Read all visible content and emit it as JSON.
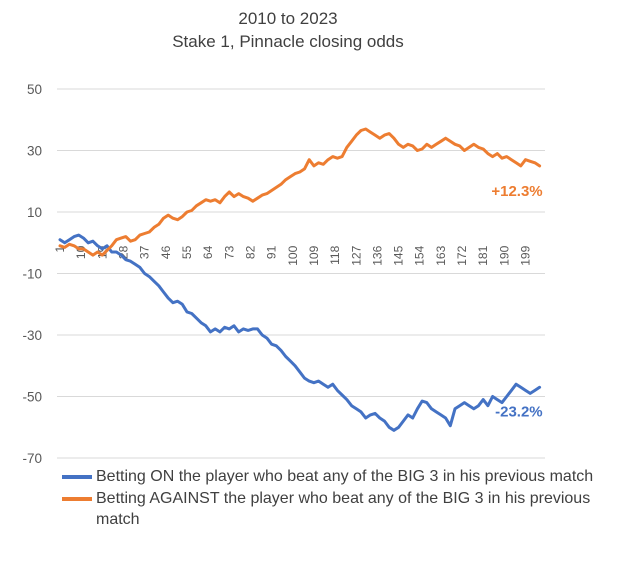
{
  "chart_data": {
    "type": "line",
    "title": "2010 to 2023",
    "subtitle": "Stake 1, Pinnacle closing odds",
    "ylim": [
      -70,
      50
    ],
    "yticks": [
      50,
      30,
      10,
      -10,
      -30,
      -50,
      -70
    ],
    "x_tick_labels": [
      "1",
      "10",
      "19",
      "28",
      "37",
      "46",
      "55",
      "64",
      "73",
      "82",
      "91",
      "100",
      "109",
      "118",
      "127",
      "136",
      "145",
      "154",
      "163",
      "172",
      "181",
      "190",
      "199"
    ],
    "x_range": [
      1,
      206
    ],
    "grid": "horizontal",
    "legend_position": "bottom",
    "series": [
      {
        "name": "Betting ON the player who beat any of the BIG 3 in his previous match",
        "color": "#4472c4",
        "end_label": "-23.2%",
        "points": [
          [
            1,
            1
          ],
          [
            3,
            0
          ],
          [
            5,
            1
          ],
          [
            7,
            2
          ],
          [
            9,
            2.5
          ],
          [
            11,
            1.5
          ],
          [
            13,
            0
          ],
          [
            15,
            0.5
          ],
          [
            17,
            -1
          ],
          [
            19,
            -2
          ],
          [
            21,
            -1
          ],
          [
            23,
            -3
          ],
          [
            25,
            -3
          ],
          [
            27,
            -4
          ],
          [
            29,
            -5.5
          ],
          [
            31,
            -6
          ],
          [
            33,
            -7
          ],
          [
            35,
            -8
          ],
          [
            37,
            -10
          ],
          [
            39,
            -11
          ],
          [
            41,
            -12.5
          ],
          [
            43,
            -14
          ],
          [
            45,
            -16
          ],
          [
            47,
            -18
          ],
          [
            49,
            -19.5
          ],
          [
            51,
            -19
          ],
          [
            53,
            -20
          ],
          [
            55,
            -22.5
          ],
          [
            57,
            -23
          ],
          [
            59,
            -24.5
          ],
          [
            61,
            -26
          ],
          [
            63,
            -27
          ],
          [
            65,
            -29
          ],
          [
            67,
            -28
          ],
          [
            69,
            -29
          ],
          [
            71,
            -27.5
          ],
          [
            73,
            -28
          ],
          [
            75,
            -27
          ],
          [
            77,
            -29
          ],
          [
            79,
            -28
          ],
          [
            81,
            -28.5
          ],
          [
            83,
            -28
          ],
          [
            85,
            -28
          ],
          [
            87,
            -30
          ],
          [
            89,
            -31
          ],
          [
            91,
            -33
          ],
          [
            93,
            -33.5
          ],
          [
            95,
            -35
          ],
          [
            97,
            -37
          ],
          [
            99,
            -38.5
          ],
          [
            101,
            -40
          ],
          [
            103,
            -42
          ],
          [
            105,
            -44
          ],
          [
            107,
            -45
          ],
          [
            109,
            -45.5
          ],
          [
            111,
            -45
          ],
          [
            113,
            -46
          ],
          [
            115,
            -47
          ],
          [
            117,
            -46
          ],
          [
            119,
            -48
          ],
          [
            121,
            -49.5
          ],
          [
            123,
            -51
          ],
          [
            125,
            -53
          ],
          [
            127,
            -54
          ],
          [
            129,
            -55
          ],
          [
            131,
            -57
          ],
          [
            133,
            -56
          ],
          [
            135,
            -55.5
          ],
          [
            137,
            -57
          ],
          [
            139,
            -58
          ],
          [
            141,
            -60
          ],
          [
            143,
            -61
          ],
          [
            145,
            -60
          ],
          [
            147,
            -58
          ],
          [
            149,
            -56
          ],
          [
            151,
            -57
          ],
          [
            153,
            -54
          ],
          [
            155,
            -51.5
          ],
          [
            157,
            -52
          ],
          [
            159,
            -54
          ],
          [
            161,
            -55
          ],
          [
            163,
            -56
          ],
          [
            165,
            -57
          ],
          [
            167,
            -59.5
          ],
          [
            169,
            -54
          ],
          [
            171,
            -53
          ],
          [
            173,
            -52
          ],
          [
            175,
            -53
          ],
          [
            177,
            -54
          ],
          [
            179,
            -53
          ],
          [
            181,
            -51
          ],
          [
            183,
            -53
          ],
          [
            185,
            -50
          ],
          [
            187,
            -51
          ],
          [
            189,
            -52
          ],
          [
            191,
            -50
          ],
          [
            193,
            -48
          ],
          [
            195,
            -46
          ],
          [
            197,
            -47
          ],
          [
            199,
            -48
          ],
          [
            201,
            -49
          ],
          [
            203,
            -48
          ],
          [
            205,
            -47
          ]
        ]
      },
      {
        "name": "Betting AGAINST the player who beat any of the BIG 3 in his previous match",
        "color": "#ed7d31",
        "end_label": "+12.3%",
        "points": [
          [
            1,
            -1
          ],
          [
            3,
            -1.5
          ],
          [
            5,
            -0.5
          ],
          [
            7,
            -1
          ],
          [
            9,
            -2
          ],
          [
            11,
            -2
          ],
          [
            13,
            -3
          ],
          [
            15,
            -4
          ],
          [
            17,
            -3
          ],
          [
            19,
            -4
          ],
          [
            21,
            -2.5
          ],
          [
            23,
            -1
          ],
          [
            25,
            1
          ],
          [
            27,
            1.5
          ],
          [
            29,
            2
          ],
          [
            31,
            0.5
          ],
          [
            33,
            1
          ],
          [
            35,
            2.5
          ],
          [
            37,
            3
          ],
          [
            39,
            3.5
          ],
          [
            41,
            5
          ],
          [
            43,
            6
          ],
          [
            45,
            8
          ],
          [
            47,
            9
          ],
          [
            49,
            8
          ],
          [
            51,
            7.5
          ],
          [
            53,
            8.5
          ],
          [
            55,
            10
          ],
          [
            57,
            10.5
          ],
          [
            59,
            12
          ],
          [
            61,
            13
          ],
          [
            63,
            14
          ],
          [
            65,
            13.5
          ],
          [
            67,
            14
          ],
          [
            69,
            13
          ],
          [
            71,
            15
          ],
          [
            73,
            16.5
          ],
          [
            75,
            15
          ],
          [
            77,
            16
          ],
          [
            79,
            15
          ],
          [
            81,
            14.5
          ],
          [
            83,
            13.5
          ],
          [
            85,
            14.5
          ],
          [
            87,
            15.5
          ],
          [
            89,
            16
          ],
          [
            91,
            17
          ],
          [
            93,
            18
          ],
          [
            95,
            19
          ],
          [
            97,
            20.5
          ],
          [
            99,
            21.5
          ],
          [
            101,
            22.5
          ],
          [
            103,
            23
          ],
          [
            105,
            24
          ],
          [
            107,
            27
          ],
          [
            109,
            25
          ],
          [
            111,
            26
          ],
          [
            113,
            25.5
          ],
          [
            115,
            27
          ],
          [
            117,
            28
          ],
          [
            119,
            27.5
          ],
          [
            121,
            28
          ],
          [
            123,
            31
          ],
          [
            125,
            33
          ],
          [
            127,
            35
          ],
          [
            129,
            36.5
          ],
          [
            131,
            37
          ],
          [
            133,
            36
          ],
          [
            135,
            35
          ],
          [
            137,
            34
          ],
          [
            139,
            35
          ],
          [
            141,
            35.5
          ],
          [
            143,
            34
          ],
          [
            145,
            32
          ],
          [
            147,
            31
          ],
          [
            149,
            32
          ],
          [
            151,
            31.5
          ],
          [
            153,
            30
          ],
          [
            155,
            30.5
          ],
          [
            157,
            32
          ],
          [
            159,
            31
          ],
          [
            161,
            32
          ],
          [
            163,
            33
          ],
          [
            165,
            34
          ],
          [
            167,
            33
          ],
          [
            169,
            32
          ],
          [
            171,
            31.5
          ],
          [
            173,
            30
          ],
          [
            175,
            31
          ],
          [
            177,
            32
          ],
          [
            179,
            31
          ],
          [
            181,
            30.5
          ],
          [
            183,
            29
          ],
          [
            185,
            28
          ],
          [
            187,
            29
          ],
          [
            189,
            27.5
          ],
          [
            191,
            28
          ],
          [
            193,
            27
          ],
          [
            195,
            26
          ],
          [
            197,
            25
          ],
          [
            199,
            27
          ],
          [
            201,
            26.5
          ],
          [
            203,
            26
          ],
          [
            205,
            25
          ]
        ]
      }
    ]
  }
}
